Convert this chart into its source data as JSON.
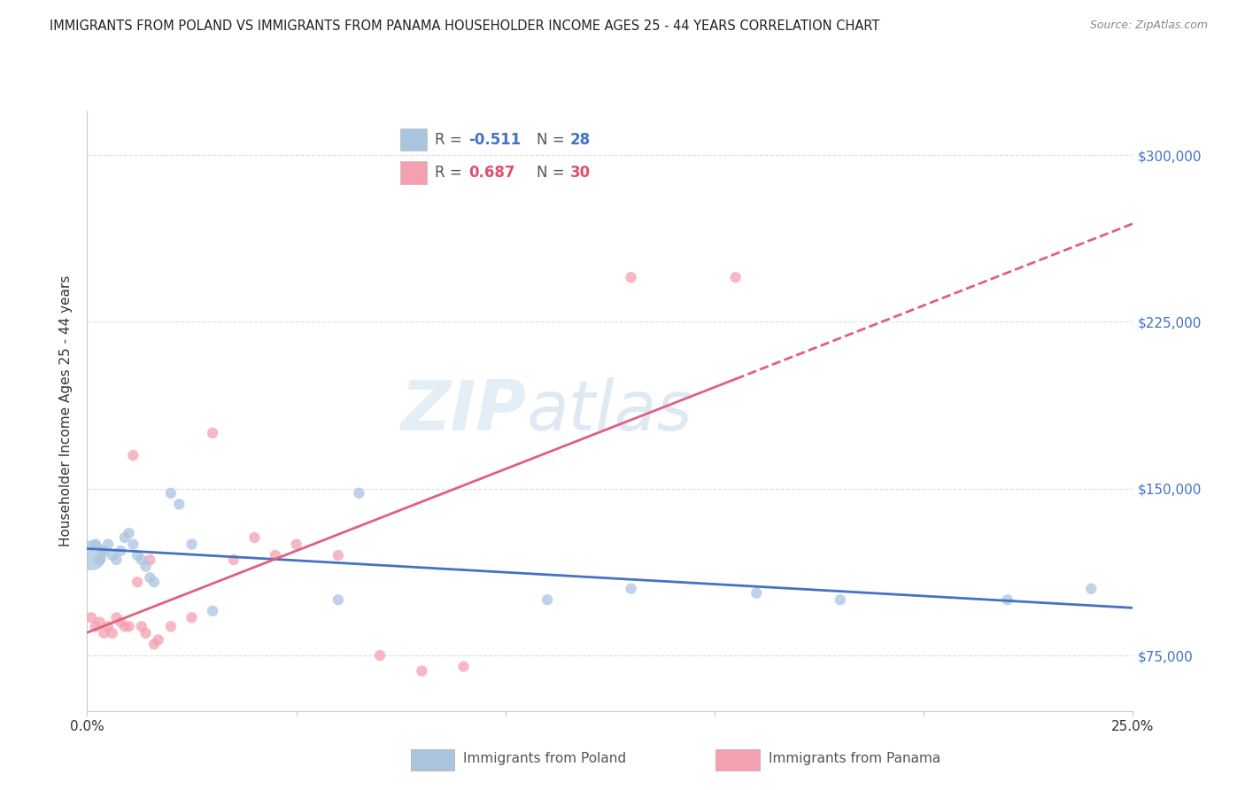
{
  "title": "IMMIGRANTS FROM POLAND VS IMMIGRANTS FROM PANAMA HOUSEHOLDER INCOME AGES 25 - 44 YEARS CORRELATION CHART",
  "source": "Source: ZipAtlas.com",
  "ylabel": "Householder Income Ages 25 - 44 years",
  "xlim": [
    0.0,
    0.25
  ],
  "ylim": [
    50000,
    320000
  ],
  "yticks": [
    75000,
    150000,
    225000,
    300000
  ],
  "ytick_labels": [
    "$75,000",
    "$150,000",
    "$225,000",
    "$300,000"
  ],
  "xticks": [
    0.0,
    0.05,
    0.1,
    0.15,
    0.2,
    0.25
  ],
  "xtick_labels": [
    "0.0%",
    "",
    "",
    "",
    "",
    "25.0%"
  ],
  "grid_color": "#dddddd",
  "background_color": "#ffffff",
  "poland_color": "#aac4e0",
  "panama_color": "#f4a0b0",
  "poland_R": -0.511,
  "poland_N": 28,
  "panama_R": 0.687,
  "panama_N": 30,
  "poland_x": [
    0.001,
    0.002,
    0.003,
    0.004,
    0.005,
    0.006,
    0.007,
    0.008,
    0.009,
    0.01,
    0.011,
    0.012,
    0.013,
    0.014,
    0.015,
    0.016,
    0.02,
    0.022,
    0.025,
    0.03,
    0.06,
    0.065,
    0.11,
    0.13,
    0.16,
    0.18,
    0.22,
    0.24
  ],
  "poland_y": [
    120000,
    125000,
    118000,
    122000,
    125000,
    120000,
    118000,
    122000,
    128000,
    130000,
    125000,
    120000,
    118000,
    115000,
    110000,
    108000,
    148000,
    143000,
    125000,
    95000,
    100000,
    148000,
    100000,
    105000,
    103000,
    100000,
    100000,
    105000
  ],
  "poland_sizes": [
    600,
    80,
    80,
    80,
    80,
    80,
    80,
    80,
    80,
    80,
    80,
    80,
    80,
    80,
    80,
    80,
    80,
    80,
    80,
    80,
    80,
    80,
    80,
    80,
    80,
    80,
    80,
    80
  ],
  "panama_x": [
    0.001,
    0.002,
    0.003,
    0.004,
    0.005,
    0.006,
    0.007,
    0.008,
    0.009,
    0.01,
    0.011,
    0.012,
    0.013,
    0.014,
    0.015,
    0.016,
    0.017,
    0.02,
    0.025,
    0.03,
    0.035,
    0.04,
    0.045,
    0.05,
    0.06,
    0.07,
    0.08,
    0.09,
    0.13,
    0.155
  ],
  "panama_y": [
    92000,
    88000,
    90000,
    85000,
    88000,
    85000,
    92000,
    90000,
    88000,
    88000,
    165000,
    108000,
    88000,
    85000,
    118000,
    80000,
    82000,
    88000,
    92000,
    175000,
    118000,
    128000,
    120000,
    125000,
    120000,
    75000,
    68000,
    70000,
    245000,
    245000
  ],
  "panama_sizes": [
    80,
    80,
    80,
    80,
    80,
    80,
    80,
    80,
    80,
    80,
    80,
    80,
    80,
    80,
    80,
    80,
    80,
    80,
    80,
    80,
    80,
    80,
    80,
    80,
    80,
    80,
    80,
    80,
    80,
    80
  ],
  "poland_line_color": "#4472c4",
  "panama_line_color": "#e06080",
  "legend_R_color_poland": "#4472c4",
  "legend_R_color_panama": "#e05070",
  "legend_text_color": "#555555"
}
